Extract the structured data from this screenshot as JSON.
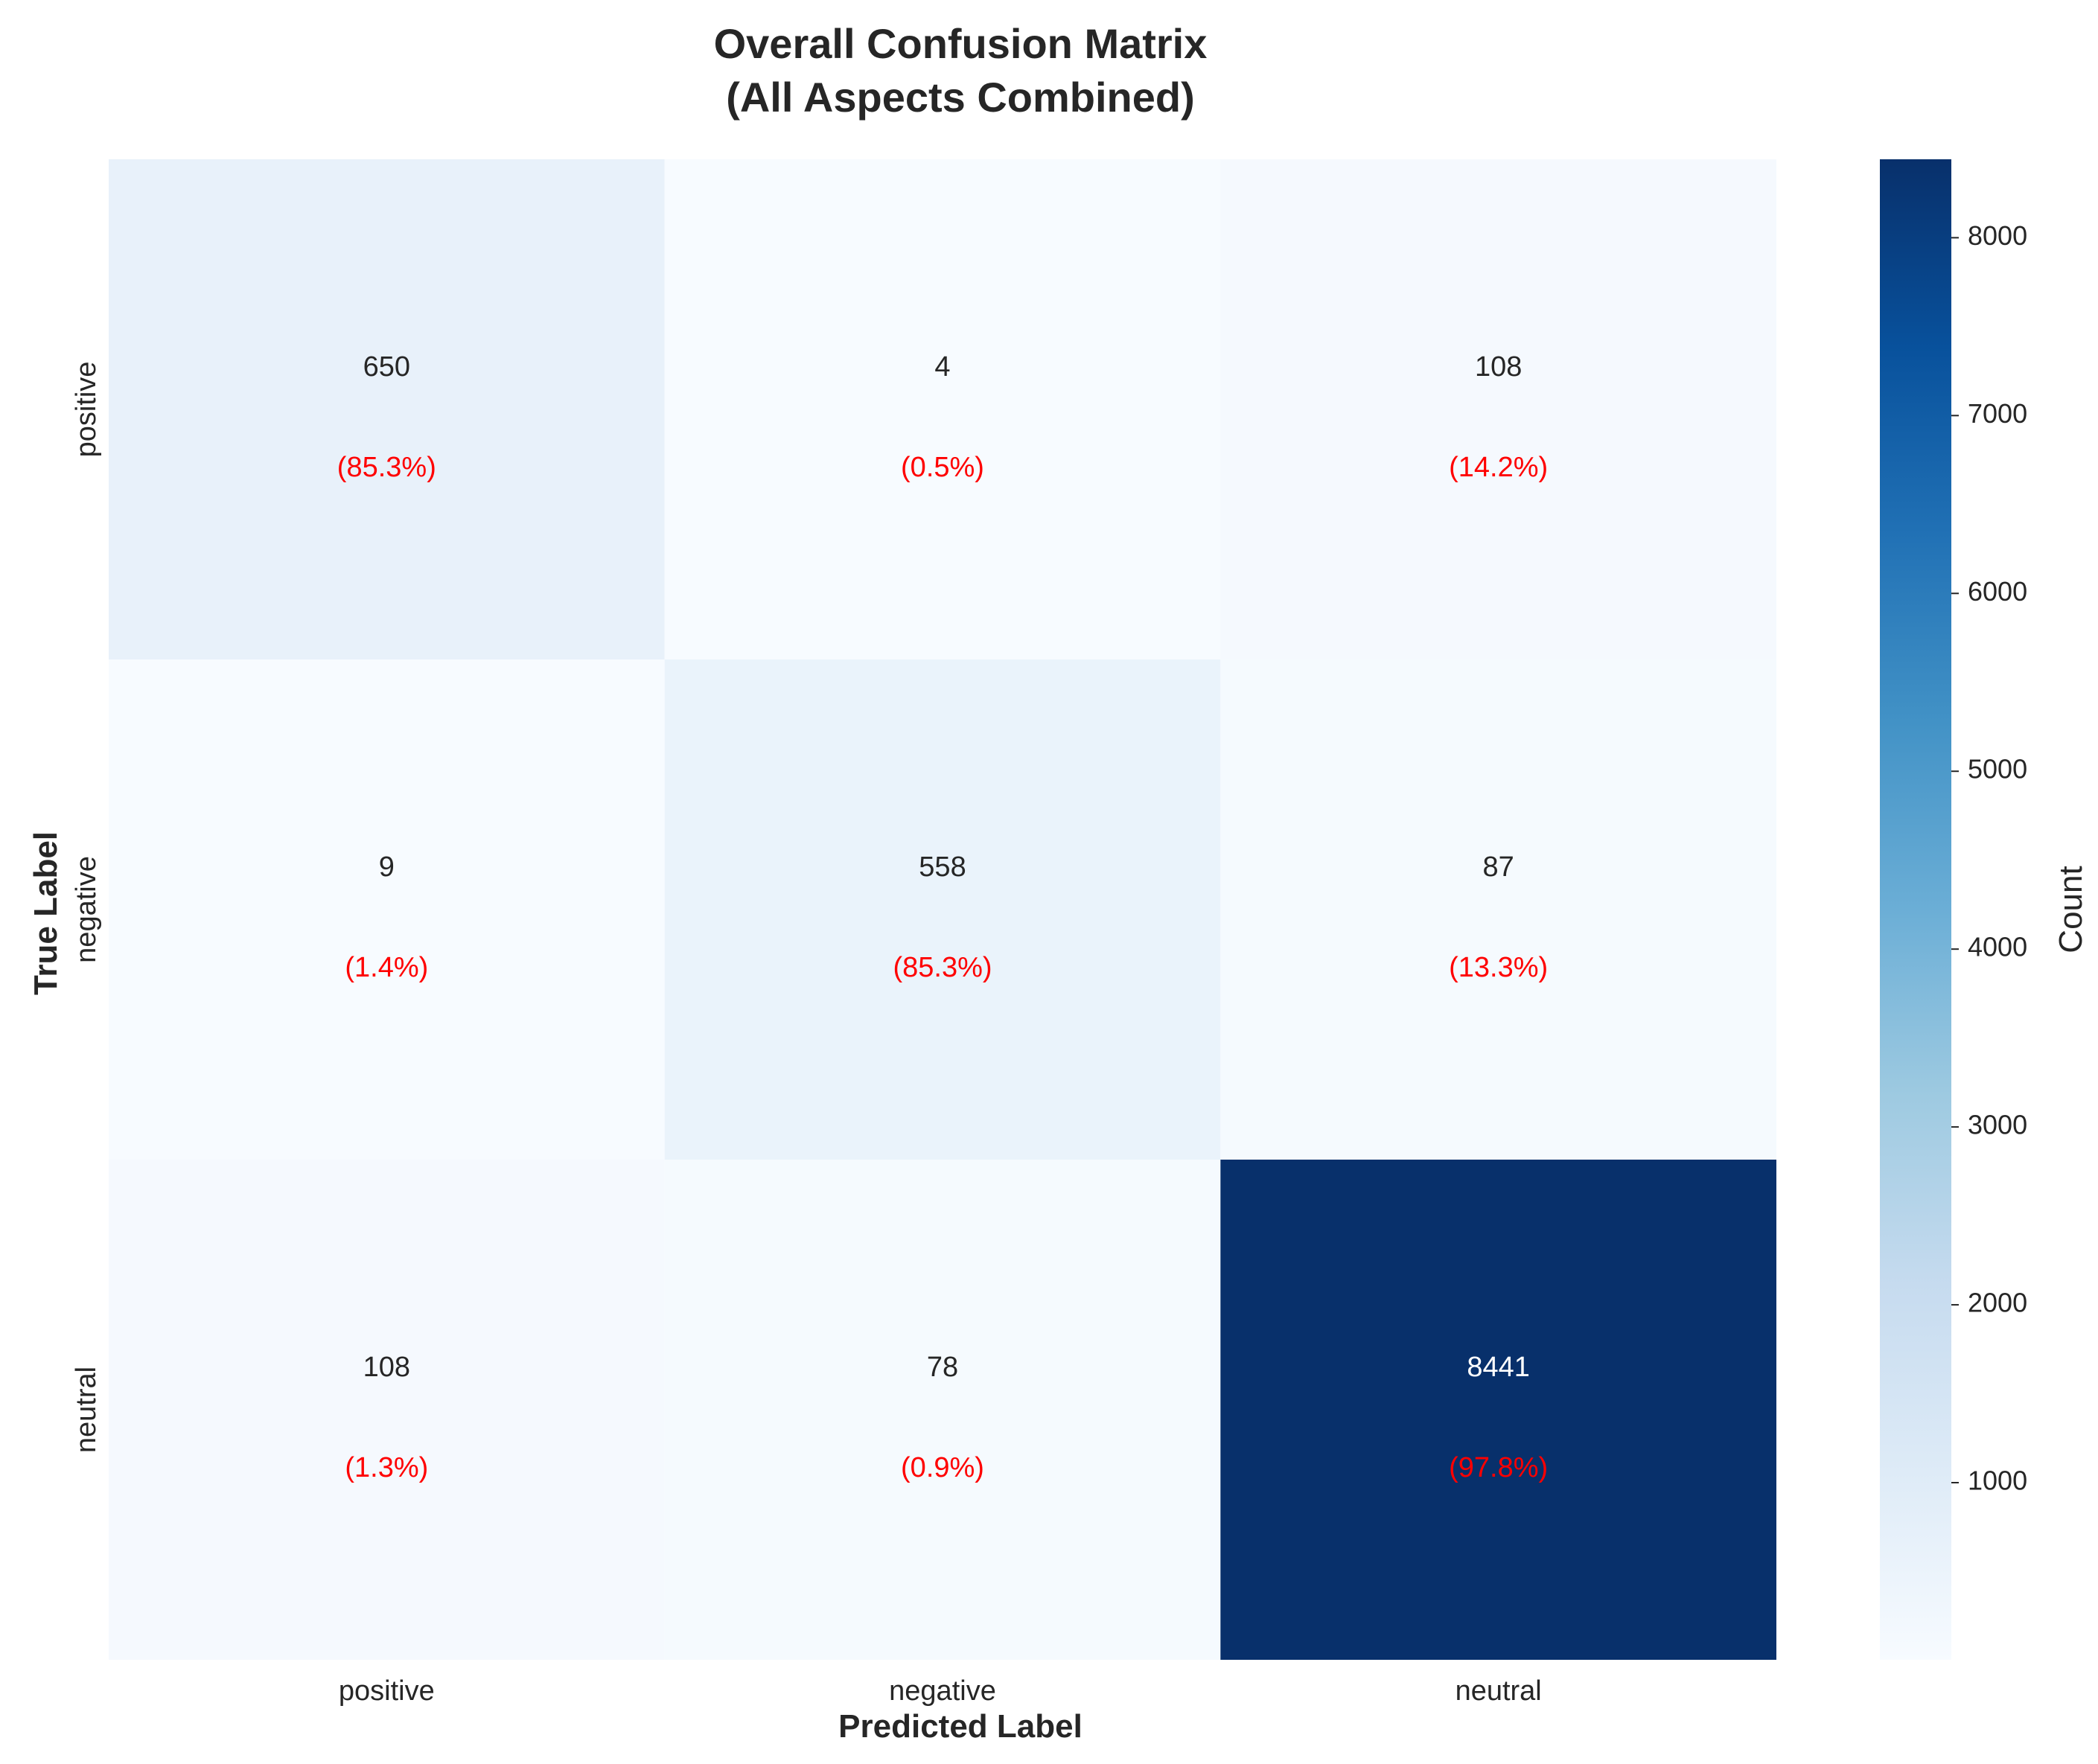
{
  "chart_data": {
    "type": "heatmap",
    "title_lines": [
      "Overall Confusion Matrix",
      "(All Aspects Combined)"
    ],
    "xlabel": "Predicted Label",
    "ylabel": "True Label",
    "x_categories": [
      "positive",
      "negative",
      "neutral"
    ],
    "y_categories": [
      "positive",
      "negative",
      "neutral"
    ],
    "values": [
      [
        650,
        4,
        108
      ],
      [
        9,
        558,
        87
      ],
      [
        108,
        78,
        8441
      ]
    ],
    "percent_labels": [
      [
        "(85.3%)",
        "(0.5%)",
        "(14.2%)"
      ],
      [
        "(1.4%)",
        "(85.3%)",
        "(13.3%)"
      ],
      [
        "(1.3%)",
        "(0.9%)",
        "(97.8%)"
      ]
    ],
    "colormap": "Blues",
    "colorbar": {
      "label": "Count",
      "range": [
        4,
        8441
      ],
      "ticks": [
        1000,
        2000,
        3000,
        4000,
        5000,
        6000,
        7000,
        8000
      ]
    },
    "colors": {
      "percent_text": "#ff0000",
      "low": "#f7fbff",
      "high": "#08306b"
    }
  }
}
